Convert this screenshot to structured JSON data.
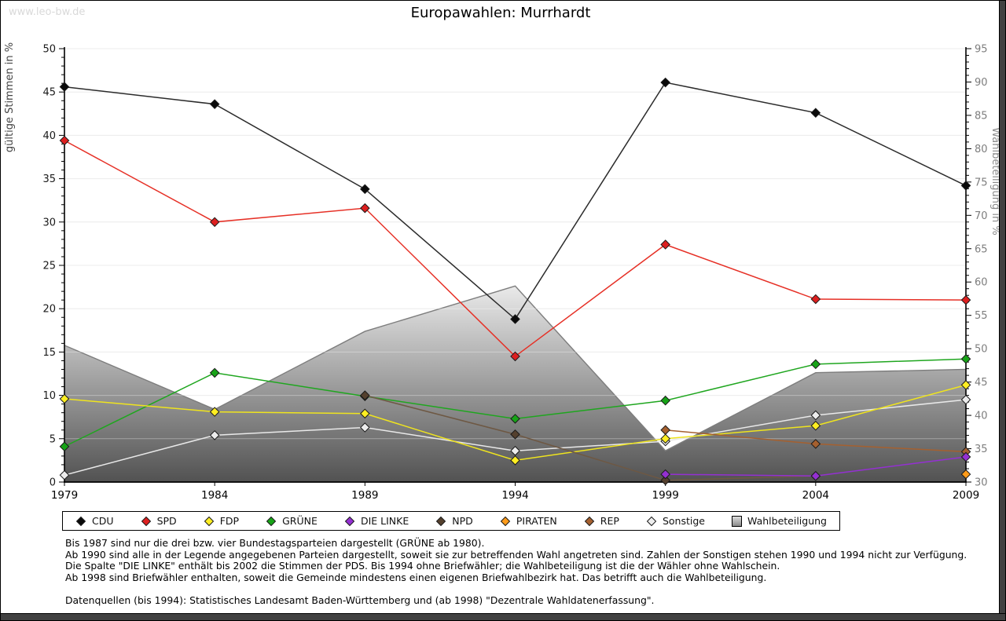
{
  "watermark": "www.leo-bw.de",
  "title": "Europawahlen: Murrhardt",
  "chart_data": {
    "type": "line",
    "title": "Europawahlen: Murrhardt",
    "x": [
      1979,
      1984,
      1989,
      1994,
      1999,
      2004,
      2009
    ],
    "left_axis": {
      "label": "gültige Stimmen in %",
      "min": 0,
      "max": 50,
      "tick_step": 5,
      "minor_step": 1
    },
    "right_axis": {
      "label": "Wahlbeteiligung in %",
      "min": 30,
      "max": 95,
      "tick_step": 5,
      "minor_step": 1
    },
    "grid": true,
    "legend_position": "bottom",
    "series": [
      {
        "name": "CDU",
        "line_color": "#2b2b2b",
        "marker_color": "#0a0a0a",
        "values": [
          45.6,
          43.6,
          33.8,
          18.8,
          46.1,
          42.6,
          34.2
        ]
      },
      {
        "name": "SPD",
        "line_color": "#e63026",
        "marker_color": "#dd1f1f",
        "values": [
          39.4,
          30.0,
          31.6,
          14.5,
          27.4,
          21.1,
          21.0
        ]
      },
      {
        "name": "FDP",
        "line_color": "#efe41e",
        "marker_color": "#ffee22",
        "values": [
          9.6,
          8.1,
          7.9,
          2.5,
          5.0,
          6.5,
          11.2
        ]
      },
      {
        "name": "GRÜNE",
        "line_color": "#1fa61f",
        "marker_color": "#17a317",
        "values": [
          4.1,
          12.6,
          9.9,
          7.3,
          9.4,
          13.6,
          14.2
        ]
      },
      {
        "name": "DIE LINKE",
        "line_color": "#9430d2",
        "marker_color": "#9430d2",
        "values": [
          null,
          null,
          null,
          null,
          0.9,
          0.7,
          2.9
        ]
      },
      {
        "name": "NPD",
        "line_color": "#6e5843",
        "marker_color": "#54402e",
        "values": [
          null,
          null,
          10.0,
          5.5,
          0.2,
          0.7,
          null
        ]
      },
      {
        "name": "PIRATEN",
        "line_color": "#ff9b1a",
        "marker_color": "#ff9b1a",
        "values": [
          null,
          null,
          null,
          null,
          null,
          null,
          0.9
        ]
      },
      {
        "name": "REP",
        "line_color": "#a5602f",
        "marker_color": "#a5602f",
        "values": [
          null,
          null,
          null,
          null,
          6.0,
          4.4,
          3.5
        ]
      },
      {
        "name": "Sonstige",
        "line_color": "#e9e9e9",
        "marker_color": "#ededed",
        "values": [
          0.8,
          5.4,
          6.3,
          3.6,
          4.7,
          7.7,
          9.5
        ]
      }
    ],
    "turnout": {
      "name": "Wahlbeteiligung",
      "axis": "right",
      "values": [
        50.5,
        40.9,
        52.6,
        59.4,
        34.7,
        46.4,
        46.9
      ]
    }
  },
  "footer": {
    "notes": [
      "Bis 1987 sind nur die drei bzw. vier Bundestagsparteien dargestellt (GRÜNE ab 1980).",
      "Ab 1990 sind alle in der Legende angegebenen Parteien dargestellt, soweit sie zur betreffenden Wahl angetreten sind. Zahlen der Sonstigen stehen 1990 und 1994 nicht zur Verfügung.",
      "Die Spalte \"DIE LINKE\" enthält bis 2002 die Stimmen der PDS. Bis 1994 ohne Briefwähler; die Wahlbeteiligung ist die der Wähler ohne Wahlschein.",
      "Ab 1998 sind Briefwähler enthalten, soweit die Gemeinde mindestens einen eigenen Briefwahlbezirk hat. Das betrifft auch die Wahlbeteiligung."
    ],
    "source": "Datenquellen (bis 1994): Statistisches Landesamt Baden-Württemberg und (ab 1998) \"Dezentrale Wahldatenerfassung\"."
  }
}
